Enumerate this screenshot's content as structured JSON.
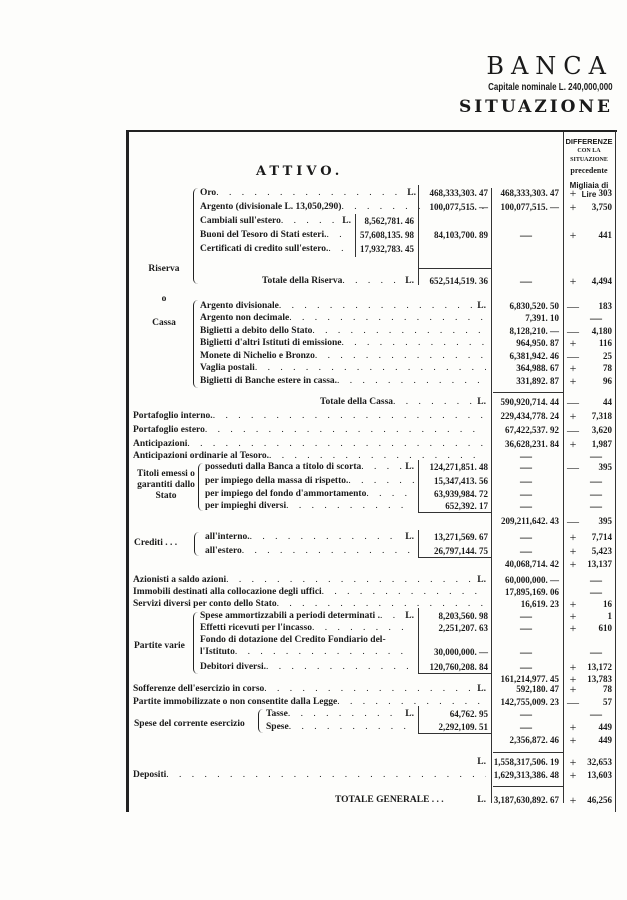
{
  "header": {
    "bank": "BANCA",
    "capital": "Capitale nominale L. 240,000,000",
    "situation": "SITUAZIONE"
  },
  "section_title": "ATTIVO.",
  "diff_header": {
    "line1": "DIFFERENZE",
    "line2": "CON LA",
    "line3": "SITUAZIONE",
    "line4": "precedente",
    "unit": "Migliaia di Lire"
  },
  "groups": {
    "riserva": "Riserva",
    "o": "o",
    "cassa": "Cassa",
    "titoli": "Titoli emessi o garantiti dallo Stato",
    "crediti": "Crediti . . .",
    "partite_varie": "Partite varie",
    "spese": "Spese del corrente esercizio"
  },
  "rows": [
    {
      "label": "Oro",
      "unit": "L.",
      "b": "468,333,303. 47",
      "c": "468,333,303. 47",
      "sign": "+",
      "diff": "303"
    },
    {
      "label": "Argento (divisionale L. 13,050,290)",
      "unit": "",
      "b": "100,077,515. —",
      "c": "100,077,515. —",
      "sign": "+",
      "diff": "3,750"
    },
    {
      "label": "Cambiali sull'estero",
      "unit": "L.",
      "a": "8,562,781. 46"
    },
    {
      "label": "Buoni del Tesoro di Stati esteri.",
      "unit": "",
      "a": "57,608,135. 98",
      "b": "84,103,700. 89",
      "c": "—",
      "sign": "+",
      "diff": "441"
    },
    {
      "label": "Certificati di credito sull'estero.",
      "unit": "",
      "a": "17,932,783. 45"
    },
    {
      "label": "Totale della Riserva",
      "unit": "L.",
      "b": "652,514,519. 36",
      "c": "—",
      "sign": "+",
      "diff": "4,494"
    },
    {
      "label": "Argento divisionale",
      "unit": "L.",
      "c": "6,830,520. 50",
      "sign": "—",
      "diff": "183"
    },
    {
      "label": "Argento non decimale",
      "unit": "",
      "c": "7,391. 10",
      "sign": "",
      "diff": "—"
    },
    {
      "label": "Biglietti a debito dello Stato",
      "unit": "",
      "c": "8,128,210. —",
      "sign": "—",
      "diff": "4,180"
    },
    {
      "label": "Biglietti d'altri Istituti di emissione",
      "unit": "",
      "c": "964,950. 87",
      "sign": "+",
      "diff": "116"
    },
    {
      "label": "Monete di Nichelio e Bronzo",
      "unit": "",
      "c": "6,381,942. 46",
      "sign": "—",
      "diff": "25"
    },
    {
      "label": "Vaglia postali",
      "unit": "",
      "c": "364,988. 67",
      "sign": "+",
      "diff": "78"
    },
    {
      "label": "Biglietti di Banche estere in cassa.",
      "unit": "",
      "c": "331,892. 87",
      "sign": "+",
      "diff": "96"
    },
    {
      "label": "Totale della Cassa",
      "unit": "L.",
      "c": "590,920,714. 44",
      "sign": "—",
      "diff": "44"
    },
    {
      "label": "Portafoglio interno.",
      "unit": "",
      "c": "229,434,778. 24",
      "sign": "+",
      "diff": "7,318"
    },
    {
      "label": "Portafoglio estero",
      "unit": "",
      "c": "67,422,537. 92",
      "sign": "—",
      "diff": "3,620"
    },
    {
      "label": "Anticipazioni",
      "unit": "",
      "c": "36,628,231. 84",
      "sign": "+",
      "diff": "1,987"
    },
    {
      "label": "Anticipazioni ordinarie al Tesoro.",
      "unit": "",
      "c": "—",
      "sign": "",
      "diff": "—"
    },
    {
      "label": "posseduti dalla Banca a titolo di scorta",
      "unit": "L.",
      "b": "124,271,851. 48",
      "c": "—",
      "sign": "—",
      "diff": "395"
    },
    {
      "label": "per impiego della massa di rispetto.",
      "unit": "",
      "b": "15,347,413. 56",
      "c": "—",
      "sign": "",
      "diff": "—"
    },
    {
      "label": "per impiego del fondo d'ammortamento",
      "unit": "",
      "b": "63,939,984. 72",
      "c": "—",
      "sign": "",
      "diff": "—"
    },
    {
      "label": "per impieghi diversi",
      "unit": "",
      "b": "652,392. 17",
      "c": "—",
      "sign": "",
      "diff": "—"
    },
    {
      "label": "",
      "unit": "",
      "c": "209,211,642. 43",
      "sign": "—",
      "diff": "395"
    },
    {
      "label": "all'interno.",
      "unit": "L.",
      "b": "13,271,569. 67",
      "c": "—",
      "sign": "+",
      "diff": "7,714"
    },
    {
      "label": "all'estero",
      "unit": "",
      "b": "26,797,144. 75",
      "c": "—",
      "sign": "+",
      "diff": "5,423"
    },
    {
      "label": "",
      "unit": "",
      "c": "40,068,714. 42",
      "sign": "+",
      "diff": "13,137"
    },
    {
      "label": "Azionisti a saldo azioni",
      "unit": "L.",
      "c": "60,000,000. —",
      "sign": "",
      "diff": "—"
    },
    {
      "label": "Immobili destinati alla collocazione degli uffici",
      "unit": "",
      "c": "17,895,169. 06",
      "sign": "",
      "diff": "—"
    },
    {
      "label": "Servizi diversi per conto dello Stato",
      "unit": "",
      "c": "16,619. 23",
      "sign": "+",
      "diff": "16"
    },
    {
      "label": "Spese ammortizzabili a periodi determinati .",
      "unit": "L.",
      "b": "8,203,560. 98",
      "c": "—",
      "sign": "+",
      "diff": "1"
    },
    {
      "label": "Effetti ricevuti per l'incasso",
      "unit": "",
      "b": "2,251,207. 63",
      "c": "—",
      "sign": "+",
      "diff": "610"
    },
    {
      "label": "Fondo di dotazione del Credito Fondiario del-",
      "unit": "",
      "nodots": true
    },
    {
      "label": "l'Istituto",
      "unit": "",
      "b": "30,000,000. —",
      "c": "—",
      "sign": "",
      "diff": "—"
    },
    {
      "label": "Debitori diversi.",
      "unit": "",
      "b": "120,760,208. 84",
      "c": "—",
      "sign": "+",
      "diff": "13,172"
    },
    {
      "label": "",
      "unit": "",
      "c": "161,214,977. 45",
      "sign": "+",
      "diff": "13,783"
    },
    {
      "label": "Sofferenze dell'esercizio in corso",
      "unit": "L.",
      "c": "592,180. 47",
      "sign": "+",
      "diff": "78"
    },
    {
      "label": "Partite immobilizzate o non consentite dalla Legge",
      "unit": "",
      "c": "142,755,009. 23",
      "sign": "—",
      "diff": "57"
    },
    {
      "label": "Tasse",
      "unit": "L.",
      "b": "64,762. 95",
      "c": "—",
      "sign": "",
      "diff": "—"
    },
    {
      "label": "Spese",
      "unit": "",
      "b": "2,292,109. 51",
      "c": "—",
      "sign": "+",
      "diff": "449"
    },
    {
      "label": "",
      "unit": "",
      "c": "2,356,872. 46",
      "sign": "+",
      "diff": "449"
    },
    {
      "label": "",
      "unit": "L.",
      "c": "1,558,317,506. 19",
      "sign": "+",
      "diff": "32,653",
      "nodots": true
    },
    {
      "label": "Depositi",
      "unit": "",
      "c": "1,629,313,386. 48",
      "sign": "+",
      "diff": "13,603"
    },
    {
      "label": "TOTALE GENERALE . . .",
      "unit": "L.",
      "c": "3,187,630,892. 67",
      "sign": "+",
      "diff": "46,256",
      "nodots": true
    }
  ]
}
